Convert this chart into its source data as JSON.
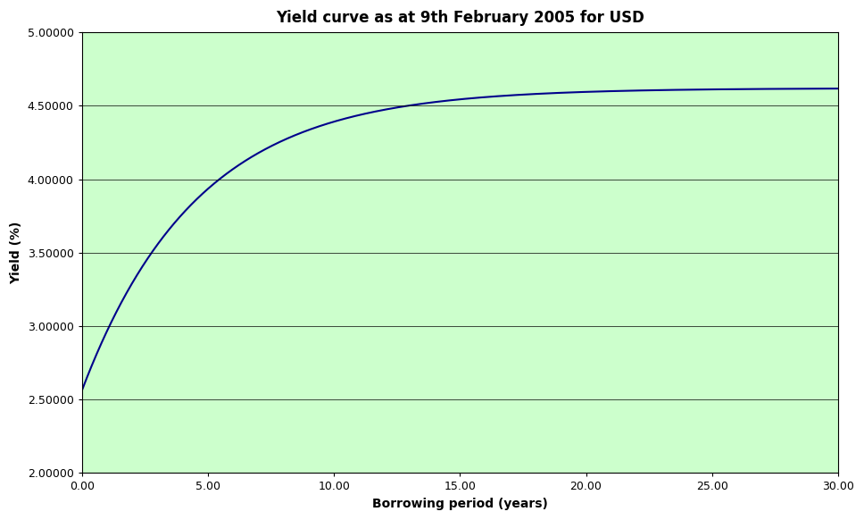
{
  "title": "Yield curve as at 9th February 2005 for USD",
  "xlabel": "Borrowing period (years)",
  "ylabel": "Yield (%)",
  "xlim": [
    0,
    30
  ],
  "ylim": [
    2.0,
    5.0
  ],
  "xticks": [
    0.0,
    5.0,
    10.0,
    15.0,
    20.0,
    25.0,
    30.0
  ],
  "yticks": [
    2.0,
    2.5,
    3.0,
    3.5,
    4.0,
    4.5,
    5.0
  ],
  "xtick_labels": [
    "0.00",
    "5.00",
    "10.00",
    "15.00",
    "20.00",
    "25.00",
    "30.00"
  ],
  "ytick_labels": [
    "2.00000",
    "2.50000",
    "3.00000",
    "3.50000",
    "4.00000",
    "4.50000",
    "5.00000"
  ],
  "curve_color": "#00008B",
  "background_color": "#ccffcc",
  "title_fontsize": 12,
  "axis_label_fontsize": 10,
  "tick_fontsize": 9,
  "curve_linewidth": 1.5,
  "y_start": 2.56,
  "y_asymptote": 4.62,
  "curve_speed": 0.22,
  "grid_color": "#000000",
  "grid_linewidth": 0.5,
  "outer_bg": "#ffffff"
}
